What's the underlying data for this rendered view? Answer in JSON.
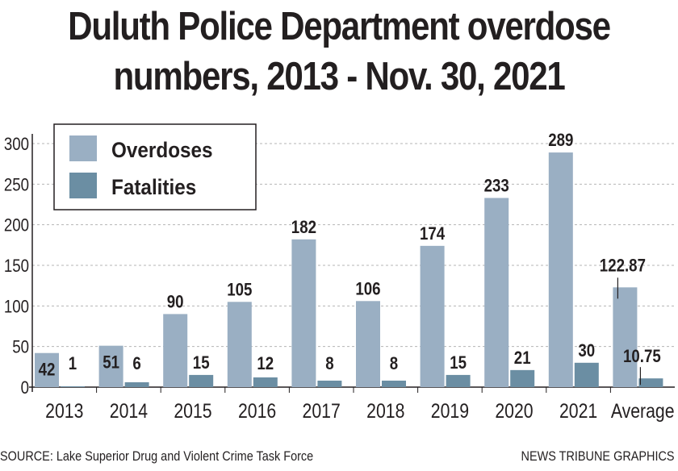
{
  "title_line1": "Duluth Police Department overdose",
  "title_line2": "numbers, 2013 - Nov. 30, 2021",
  "source": "SOURCE: Lake Superior Drug and Violent Crime Task Force",
  "credit": "NEWS TRIBUNE GRAPHICS",
  "colors": {
    "overdoses": "#9aafc3",
    "fatalities": "#6b8ea3",
    "text": "#231f20",
    "grid": "#b5b5b5"
  },
  "chart_data": {
    "type": "bar",
    "categories": [
      "2013",
      "2014",
      "2015",
      "2016",
      "2017",
      "2018",
      "2019",
      "2020",
      "2021",
      "Average"
    ],
    "series": [
      {
        "name": "Overdoses",
        "values": [
          42,
          51,
          90,
          105,
          182,
          106,
          174,
          233,
          289,
          122.87
        ],
        "labels": [
          "42",
          "51",
          "90",
          "105",
          "182",
          "106",
          "174",
          "233",
          "289",
          "122.87"
        ]
      },
      {
        "name": "Fatalities",
        "values": [
          1,
          6,
          15,
          12,
          8,
          8,
          15,
          21,
          30,
          10.75
        ],
        "labels": [
          "1",
          "6",
          "15",
          "12",
          "8",
          "8",
          "15",
          "21",
          "30",
          "10.75"
        ]
      }
    ],
    "yticks": [
      "0",
      "50",
      "100",
      "150",
      "200",
      "250",
      "300"
    ],
    "ylim": [
      0,
      300
    ],
    "grid": true,
    "legend": "top-left"
  }
}
